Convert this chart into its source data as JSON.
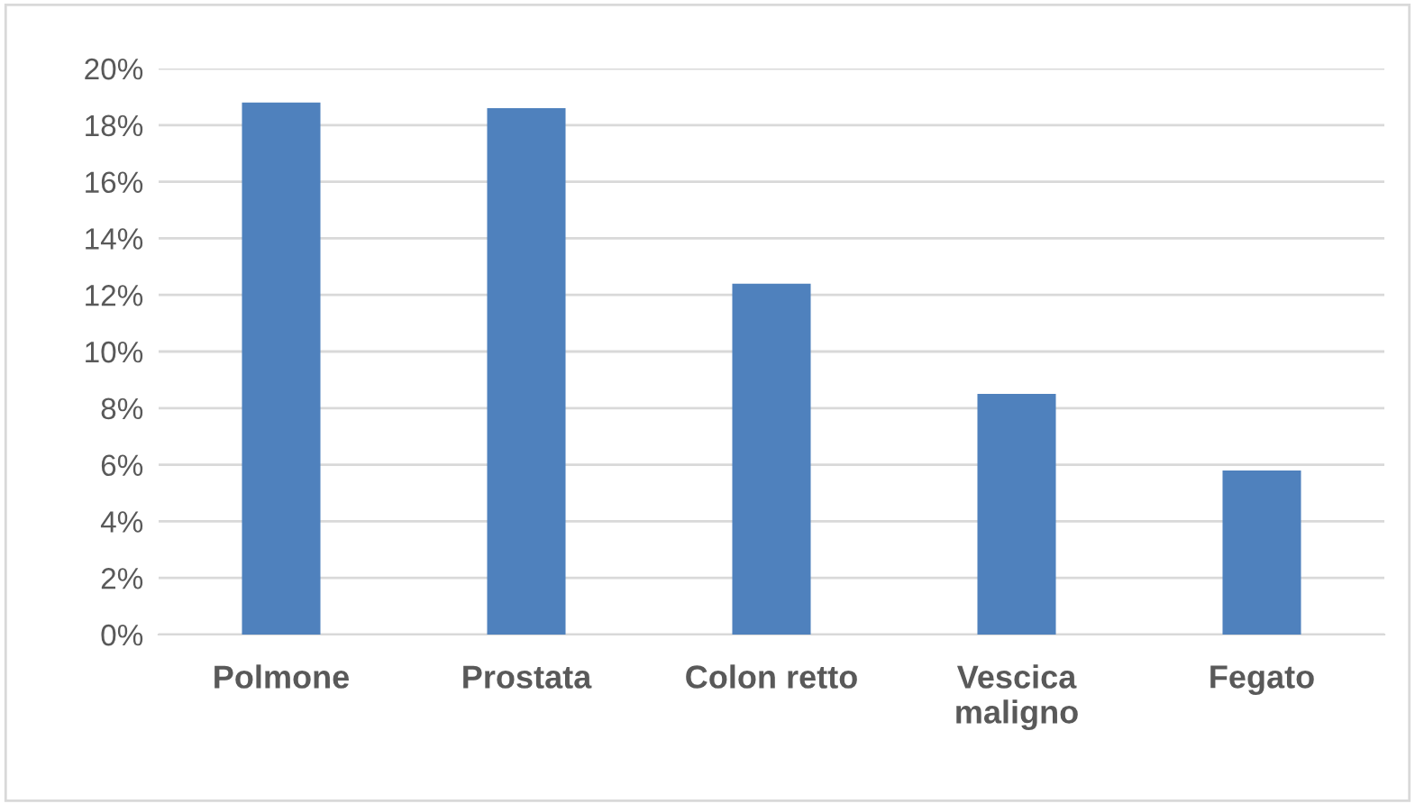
{
  "chart_data": {
    "type": "bar",
    "categories": [
      "Polmone",
      "Prostata",
      "Colon retto",
      "Vescica\nmaligno",
      "Fegato"
    ],
    "values": [
      18.8,
      18.6,
      12.4,
      8.5,
      5.8
    ],
    "color": "#4f81bd",
    "ylim": [
      0,
      20
    ],
    "yticks": [
      {
        "value": 0,
        "label": "0%"
      },
      {
        "value": 2,
        "label": "2%"
      },
      {
        "value": 4,
        "label": "4%"
      },
      {
        "value": 6,
        "label": "6%"
      },
      {
        "value": 8,
        "label": "8%"
      },
      {
        "value": 10,
        "label": "10%"
      },
      {
        "value": 12,
        "label": "12%"
      },
      {
        "value": 14,
        "label": "14%"
      },
      {
        "value": 16,
        "label": "16%"
      },
      {
        "value": 18,
        "label": "18%"
      },
      {
        "value": 20,
        "label": "20%"
      }
    ],
    "grid": "y"
  }
}
